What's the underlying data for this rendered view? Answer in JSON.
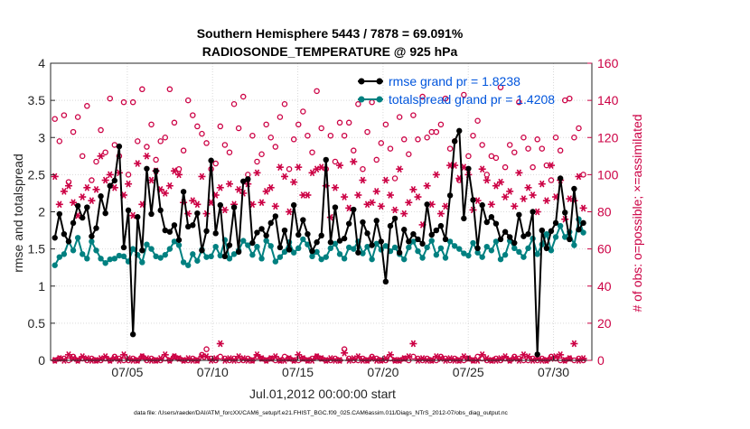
{
  "chart_data": {
    "type": "line",
    "title": "Southern Hemisphere 5443 / 7878 = 69.091%",
    "subtitle": "RADIOSONDE_TEMPERATURE @ 925 hPa",
    "xlabel": "Jul.01,2012 00:00:00 start",
    "ylabel_left": "rmse and totalspread",
    "ylabel_right": "# of obs: o=possible; ×=assimilated",
    "footer": "data file: /Users/raeder/DAI/ATM_forcXX/CAM6_setup/f.e21.FHIST_BGC.f09_025.CAM6assim.011/Diags_NTrS_2012-07/obs_diag_output.nc",
    "xlim": [
      0.5,
      32.25
    ],
    "ylim_left": [
      0,
      4
    ],
    "ylim_right": [
      0,
      160
    ],
    "yticks_left": [
      "0",
      "0.5",
      "1",
      "1.5",
      "2",
      "2.5",
      "3",
      "3.5",
      "4"
    ],
    "yticks_right": [
      "0",
      "20",
      "40",
      "60",
      "80",
      "100",
      "120",
      "140",
      "160"
    ],
    "xticks": [
      {
        "x": 5,
        "label": "07/05"
      },
      {
        "x": 10,
        "label": "07/10"
      },
      {
        "x": 15,
        "label": "07/15"
      },
      {
        "x": 20,
        "label": "07/20"
      },
      {
        "x": 25,
        "label": "07/25"
      },
      {
        "x": 30,
        "label": "07/30"
      }
    ],
    "legend_position": "top-right",
    "colors": {
      "rmse": "#000000",
      "spread": "#008080",
      "obs": "#cc0044",
      "right_axis": "#cc0044",
      "legend_text": "#0055dd"
    },
    "series": [
      {
        "name": "rmse grand pr = 1.8238",
        "axis": "left",
        "values": [
          1.65,
          1.97,
          1.7,
          1.6,
          1.85,
          2.08,
          1.92,
          2.06,
          1.67,
          1.78,
          2.21,
          1.98,
          2.35,
          2.42,
          2.88,
          1.52,
          2.02,
          0.35,
          1.93,
          1.48,
          2.58,
          1.97,
          2.55,
          2.02,
          1.75,
          1.73,
          1.82,
          1.62,
          2.27,
          1.8,
          1.82,
          1.98,
          1.48,
          1.74,
          2.69,
          1.71,
          2.09,
          1.4,
          1.55,
          2.06,
          1.46,
          2.41,
          2.44,
          1.58,
          1.72,
          1.77,
          1.68,
          1.85,
          1.94,
          1.52,
          1.75,
          1.49,
          2.09,
          1.69,
          1.89,
          1.7,
          1.47,
          1.59,
          1.68,
          2.7,
          1.59,
          2.06,
          1.61,
          1.64,
          1.84,
          2.03,
          1.45,
          1.86,
          1.71,
          1.55,
          1.88,
          1.6,
          1.06,
          1.81,
          1.91,
          1.45,
          1.76,
          1.6,
          1.7,
          1.63,
          1.57,
          2.1,
          1.69,
          1.75,
          1.81,
          1.63,
          2.22,
          2.95,
          3.09,
          1.91,
          2.58,
          2.16,
          1.51,
          2.09,
          1.86,
          1.93,
          1.84,
          1.63,
          1.73,
          1.66,
          1.58,
          1.96,
          1.67,
          1.7,
          2.0,
          0.08,
          1.75,
          1.51,
          1.74,
          1.85,
          2.45,
          1.99,
          1.63,
          2.31,
          1.76,
          1.85
        ]
      },
      {
        "name": "totalspread grand pr = 1.4208",
        "axis": "left",
        "values": [
          1.28,
          1.39,
          1.43,
          1.6,
          1.48,
          1.65,
          1.43,
          1.37,
          1.6,
          1.48,
          1.37,
          1.31,
          1.36,
          1.37,
          1.41,
          1.4,
          1.33,
          1.5,
          1.42,
          1.32,
          1.56,
          1.5,
          1.4,
          1.38,
          1.42,
          1.5,
          1.6,
          1.55,
          1.32,
          1.28,
          1.43,
          1.34,
          1.49,
          1.39,
          1.4,
          1.53,
          1.41,
          1.62,
          1.37,
          1.43,
          1.48,
          1.61,
          1.55,
          1.42,
          1.53,
          1.37,
          1.61,
          1.54,
          1.33,
          1.39,
          1.46,
          1.59,
          1.45,
          1.51,
          1.63,
          1.56,
          1.4,
          1.46,
          1.36,
          1.39,
          1.51,
          1.57,
          1.43,
          1.37,
          1.52,
          1.5,
          1.6,
          1.44,
          1.53,
          1.36,
          1.57,
          1.49,
          1.54,
          1.47,
          1.52,
          1.43,
          1.36,
          1.52,
          1.6,
          1.47,
          1.38,
          1.52,
          1.61,
          1.42,
          1.51,
          1.38,
          1.6,
          1.54,
          1.5,
          1.44,
          1.41,
          1.58,
          1.45,
          1.39,
          1.53,
          1.48,
          1.6,
          1.36,
          1.42,
          1.61,
          1.51,
          1.46,
          1.39,
          1.51,
          1.64,
          1.43,
          1.56,
          1.7,
          1.48,
          1.66,
          1.81,
          1.66,
          1.73,
          1.55,
          1.9,
          1.72
        ]
      }
    ],
    "obs_possible": [
      130,
      118,
      132,
      96,
      123,
      131,
      110,
      137,
      97,
      107,
      124,
      112,
      141,
      116,
      110,
      139,
      100,
      139,
      118,
      146,
      115,
      127,
      108,
      118,
      120,
      146,
      128,
      103,
      113,
      140,
      132,
      126,
      122,
      117,
      103,
      106,
      126,
      116,
      112,
      138,
      125,
      142,
      100,
      121,
      107,
      111,
      127,
      120,
      115,
      131,
      138,
      103,
      119,
      127,
      134,
      121,
      112,
      145,
      125,
      103,
      121,
      107,
      128,
      121,
      128,
      113,
      138,
      103,
      123,
      139,
      108,
      117,
      127,
      114,
      98,
      131,
      119,
      111,
      132,
      119,
      142,
      120,
      123,
      123,
      127,
      141,
      114,
      118,
      97,
      143,
      110,
      121,
      129,
      116,
      100,
      110,
      109,
      147,
      104,
      116,
      112,
      139,
      120,
      114,
      104,
      119,
      114,
      105,
      97,
      120,
      113,
      140,
      141,
      120,
      125,
      100
    ],
    "obs_assimilated": [
      99,
      84,
      91,
      94,
      85,
      78,
      88,
      93,
      86,
      92,
      110,
      97,
      100,
      93,
      101,
      89,
      95,
      78,
      106,
      84,
      110,
      97,
      102,
      92,
      90,
      94,
      102,
      100,
      85,
      79,
      86,
      84,
      99,
      79,
      85,
      89,
      93,
      81,
      95,
      84,
      92,
      90,
      95,
      84,
      101,
      85,
      91,
      93,
      83,
      104,
      99,
      80,
      96,
      104,
      89,
      89,
      101,
      103,
      104,
      94,
      77,
      93,
      105,
      88,
      82,
      107,
      89,
      97,
      84,
      85,
      91,
      83,
      97,
      89,
      81,
      103,
      79,
      85,
      92,
      88,
      73,
      94,
      84,
      100,
      79,
      83,
      105,
      105,
      98,
      104,
      100,
      81,
      86,
      103,
      97,
      84,
      94,
      96,
      88,
      91,
      83,
      101,
      87,
      93,
      89,
      80,
      95,
      86,
      105,
      88,
      97,
      76,
      87,
      86,
      99,
      82
    ],
    "obs_possible_low": [
      0,
      1,
      1,
      0,
      2,
      0,
      1,
      0,
      1,
      0,
      0,
      1,
      0,
      2,
      1,
      0,
      0,
      1,
      0,
      2,
      0,
      1,
      0,
      0,
      1,
      0,
      2,
      1,
      0,
      0,
      1,
      0,
      3,
      6,
      1,
      0,
      2,
      1,
      0,
      1,
      0,
      0,
      1,
      0,
      2,
      1,
      0,
      1,
      0,
      0,
      2,
      1,
      0,
      0,
      1,
      0,
      1,
      2,
      1,
      0,
      0,
      1,
      0,
      6,
      1,
      0,
      0,
      1,
      0,
      2,
      1,
      0,
      0,
      1,
      0,
      0,
      1,
      0,
      2,
      1,
      0,
      1,
      0,
      0,
      2,
      1,
      0,
      1,
      0,
      0,
      1,
      0,
      2,
      1,
      0,
      0,
      1,
      0,
      1,
      0,
      2,
      1,
      0,
      0,
      1,
      0,
      1,
      0,
      2,
      1,
      0,
      0,
      1,
      0,
      1,
      0
    ],
    "obs_assimilated_low": [
      0,
      1,
      0,
      3,
      1,
      0,
      2,
      1,
      0,
      0,
      1,
      2,
      0,
      1,
      0,
      3,
      1,
      0,
      0,
      2,
      1,
      0,
      0,
      1,
      3,
      0,
      2,
      1,
      0,
      1,
      0,
      0,
      2,
      2,
      0,
      1,
      9,
      0,
      1,
      0,
      2,
      1,
      0,
      0,
      3,
      1,
      0,
      1,
      2,
      0,
      0,
      1,
      0,
      3,
      1,
      0,
      0,
      2,
      1,
      0,
      1,
      0,
      0,
      4,
      0,
      1,
      2,
      0,
      0,
      1,
      0,
      0,
      1,
      3,
      0,
      0,
      1,
      2,
      9,
      0,
      1,
      0,
      0,
      2,
      1,
      0,
      1,
      0,
      0,
      2,
      1,
      0,
      0,
      3,
      1,
      0,
      0,
      1,
      2,
      0,
      1,
      0,
      3,
      2,
      0,
      1,
      0,
      0,
      1,
      2,
      3,
      0,
      1,
      9,
      0,
      1
    ]
  }
}
